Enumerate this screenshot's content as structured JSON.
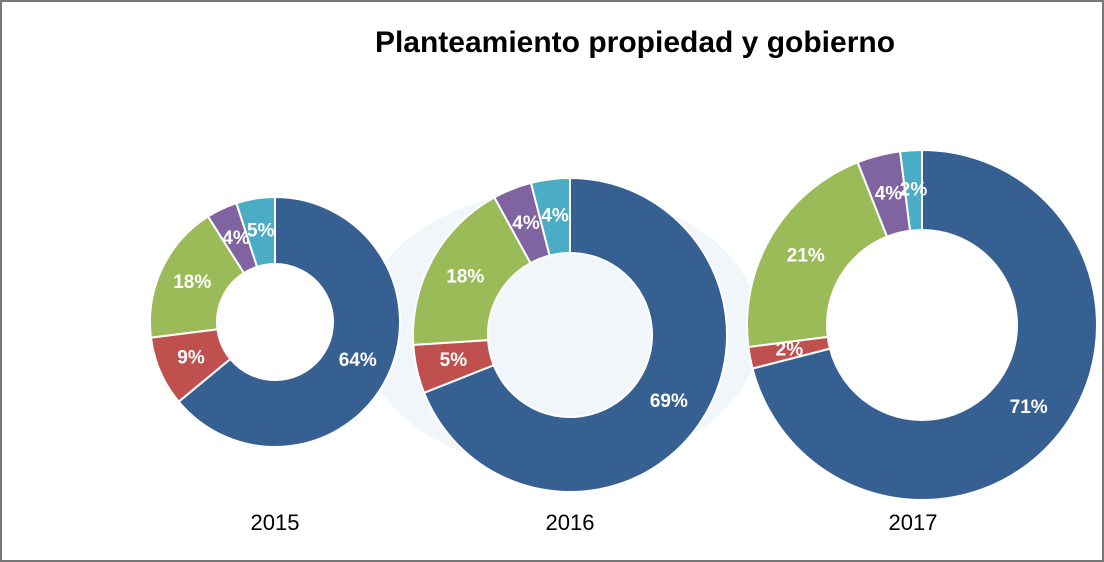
{
  "title": "Planteamiento propiedad y gobierno",
  "chart_data": [
    {
      "type": "donut",
      "title": "2015",
      "values": [
        64,
        9,
        18,
        4,
        5
      ],
      "value_labels": [
        "64%",
        "9%",
        "18%",
        "4%",
        "5%"
      ],
      "colors": [
        "#376092",
        "#c0504d",
        "#9bbb59",
        "#8064a2",
        "#4bacc6"
      ]
    },
    {
      "type": "donut",
      "title": "2016",
      "values": [
        69,
        5,
        18,
        4,
        4
      ],
      "value_labels": [
        "69%",
        "5%",
        "18%",
        "4%",
        "4%"
      ],
      "colors": [
        "#376092",
        "#c0504d",
        "#9bbb59",
        "#8064a2",
        "#4bacc6"
      ]
    },
    {
      "type": "donut",
      "title": "2017",
      "values": [
        71,
        2,
        21,
        4,
        2
      ],
      "value_labels": [
        "71%",
        "2%",
        "21%",
        "4%",
        "2%"
      ],
      "colors": [
        "#376092",
        "#c0504d",
        "#9bbb59",
        "#8064a2",
        "#4bacc6"
      ]
    }
  ]
}
